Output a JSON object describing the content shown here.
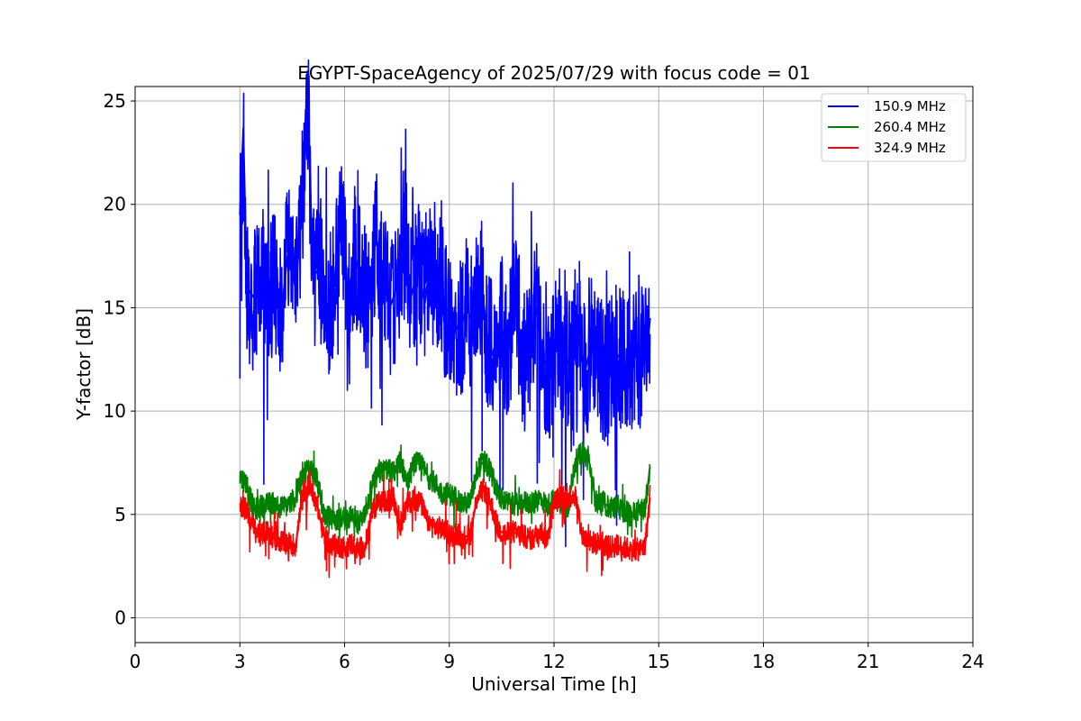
{
  "chart_data": {
    "type": "line",
    "title": "EGYPT-SpaceAgency of 2025/07/29 with focus code = 01",
    "xlabel": "Universal Time [h]",
    "ylabel": "Y-factor [dB]",
    "xlim": [
      0,
      24
    ],
    "ylim": [
      -1.2,
      25.7
    ],
    "xticks": [
      0,
      3,
      6,
      9,
      12,
      15,
      18,
      21,
      24
    ],
    "yticks": [
      0,
      5,
      10,
      15,
      20,
      25
    ],
    "grid": true,
    "legend_position": "top-right",
    "series": [
      {
        "name": "150.9 MHz",
        "color": "#0000ff",
        "x": [
          3.0,
          3.1,
          3.2,
          3.4,
          3.6,
          3.8,
          4.0,
          4.2,
          4.4,
          4.6,
          4.8,
          4.95,
          5.1,
          5.3,
          5.5,
          5.7,
          5.9,
          6.1,
          6.3,
          6.5,
          6.7,
          6.9,
          7.1,
          7.3,
          7.5,
          7.7,
          7.9,
          8.1,
          8.3,
          8.5,
          8.7,
          8.9,
          9.1,
          9.3,
          9.5,
          9.7,
          9.9,
          10.1,
          10.3,
          10.5,
          10.7,
          10.9,
          11.1,
          11.3,
          11.5,
          11.7,
          11.9,
          12.1,
          12.3,
          12.5,
          12.7,
          12.9,
          13.1,
          13.3,
          13.5,
          13.7,
          13.9,
          14.1,
          14.3,
          14.5,
          14.7,
          14.75
        ],
        "y": [
          19.5,
          23.7,
          16.0,
          15.5,
          17.0,
          15.2,
          16.5,
          15.0,
          18.0,
          15.8,
          20.5,
          24.5,
          16.5,
          17.0,
          15.0,
          16.0,
          20.0,
          15.5,
          17.5,
          16.0,
          15.2,
          18.5,
          16.5,
          15.0,
          16.0,
          19.0,
          15.5,
          16.8,
          15.2,
          18.0,
          16.0,
          15.0,
          14.5,
          13.8,
          15.0,
          14.0,
          16.5,
          13.5,
          12.5,
          14.0,
          13.0,
          16.0,
          12.0,
          13.0,
          15.0,
          12.5,
          12.0,
          14.0,
          12.8,
          12.0,
          13.5,
          12.0,
          13.5,
          12.5,
          11.5,
          13.0,
          12.5,
          12.0,
          13.0,
          12.5,
          13.5,
          14.5
        ]
      },
      {
        "name": "260.4 MHz",
        "color": "#008000",
        "x": [
          3.0,
          3.2,
          3.4,
          3.6,
          3.8,
          4.0,
          4.2,
          4.4,
          4.6,
          4.8,
          5.0,
          5.2,
          5.4,
          5.6,
          5.8,
          6.0,
          6.2,
          6.4,
          6.6,
          6.8,
          7.0,
          7.2,
          7.4,
          7.6,
          7.8,
          8.0,
          8.2,
          8.4,
          8.6,
          8.8,
          9.0,
          9.2,
          9.4,
          9.6,
          9.8,
          10.0,
          10.2,
          10.4,
          10.6,
          10.8,
          11.0,
          11.2,
          11.4,
          11.6,
          11.8,
          12.0,
          12.2,
          12.4,
          12.6,
          12.8,
          13.0,
          13.2,
          13.4,
          13.6,
          13.8,
          14.0,
          14.2,
          14.4,
          14.6,
          14.75
        ],
        "y": [
          6.8,
          6.5,
          5.2,
          5.4,
          5.5,
          5.6,
          5.3,
          5.5,
          5.8,
          7.0,
          7.3,
          6.8,
          5.0,
          4.8,
          4.7,
          4.9,
          4.8,
          4.6,
          4.9,
          6.5,
          7.0,
          7.2,
          7.0,
          7.6,
          6.5,
          7.5,
          7.4,
          6.8,
          6.5,
          6.0,
          6.0,
          5.8,
          5.5,
          5.6,
          7.2,
          7.6,
          7.0,
          6.0,
          5.6,
          5.5,
          5.5,
          5.6,
          5.5,
          5.8,
          5.4,
          5.7,
          5.6,
          5.3,
          7.5,
          8.0,
          7.6,
          5.6,
          5.6,
          5.3,
          5.4,
          5.2,
          5.0,
          5.2,
          5.3,
          7.3
        ]
      },
      {
        "name": "324.9 MHz",
        "color": "#ff0000",
        "x": [
          3.0,
          3.2,
          3.4,
          3.6,
          3.8,
          4.0,
          4.2,
          4.4,
          4.6,
          4.8,
          5.0,
          5.2,
          5.4,
          5.6,
          5.8,
          6.0,
          6.2,
          6.4,
          6.6,
          6.8,
          7.0,
          7.2,
          7.4,
          7.6,
          7.8,
          8.0,
          8.2,
          8.4,
          8.6,
          8.8,
          9.0,
          9.2,
          9.4,
          9.6,
          9.8,
          10.0,
          10.2,
          10.4,
          10.6,
          10.8,
          11.0,
          11.2,
          11.4,
          11.6,
          11.8,
          12.0,
          12.2,
          12.4,
          12.6,
          12.8,
          13.0,
          13.2,
          13.4,
          13.6,
          13.8,
          14.0,
          14.2,
          14.4,
          14.6,
          14.75
        ],
        "y": [
          5.5,
          5.2,
          4.3,
          4.0,
          4.2,
          3.8,
          3.7,
          3.6,
          3.5,
          6.0,
          6.5,
          5.6,
          4.0,
          3.5,
          3.5,
          3.4,
          3.6,
          3.3,
          3.5,
          5.2,
          5.6,
          5.6,
          5.8,
          4.5,
          5.5,
          5.8,
          5.5,
          4.5,
          4.4,
          4.3,
          4.0,
          4.1,
          3.9,
          4.0,
          5.9,
          6.2,
          5.5,
          4.3,
          4.0,
          4.2,
          4.0,
          3.9,
          3.8,
          4.3,
          3.7,
          5.6,
          5.9,
          5.8,
          6.0,
          4.0,
          3.7,
          3.6,
          3.6,
          3.4,
          3.5,
          3.4,
          3.3,
          3.3,
          3.4,
          5.8
        ]
      }
    ]
  }
}
